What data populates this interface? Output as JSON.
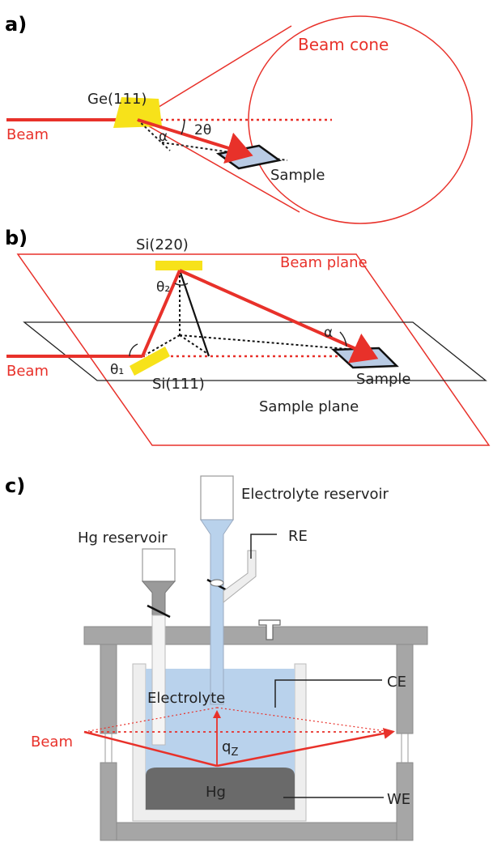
{
  "panels": {
    "a": {
      "letter": "a)",
      "crystal": "Ge(111)",
      "beam": "Beam",
      "cone": "Beam cone",
      "two_theta": "2θ",
      "alpha": "α",
      "sample": "Sample"
    },
    "b": {
      "letter": "b)",
      "crystal_top": "Si(220)",
      "crystal_bottom": "Si(111)",
      "beam_plane": "Beam plane",
      "sample_plane": "Sample plane",
      "beam": "Beam",
      "theta1": "θ₁",
      "theta2": "θ₂",
      "alpha": "α",
      "sample": "Sample"
    },
    "c": {
      "letter": "c)",
      "electrolyte_reservoir": "Electrolyte reservoir",
      "hg_reservoir": "Hg reservoir",
      "re": "RE",
      "ce": "CE",
      "we": "WE",
      "electrolyte": "Electrolyte",
      "hg": "Hg",
      "beam": "Beam",
      "qz": "q",
      "qz_sub": "Z"
    }
  },
  "colors": {
    "beam": "#e8312a",
    "crystal": "#f7e21a",
    "sample": "#b9cbe4",
    "electrolyte": "#b9d2ec",
    "hg": "#6a6a6a",
    "frame": "#a0a0a0"
  }
}
